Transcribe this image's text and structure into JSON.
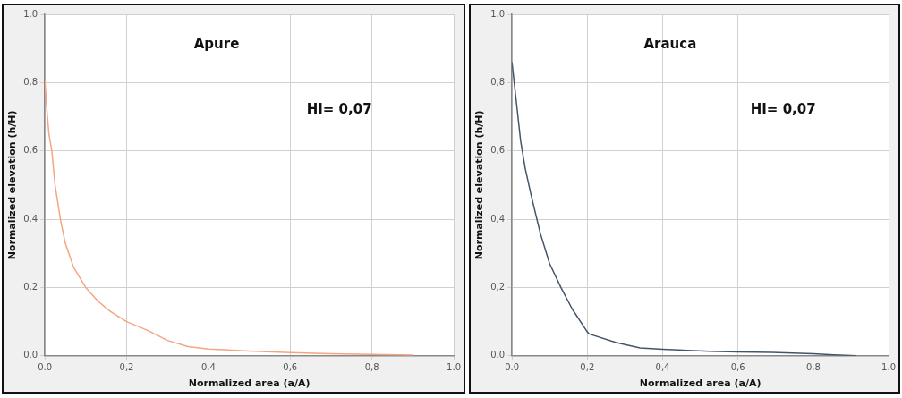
{
  "chart_data": [
    {
      "type": "line",
      "title": "Apure",
      "xlabel": "Normalized area (a/A)",
      "ylabel": "Normalized elevation (h/H)",
      "annotations": [
        "HI= 0,07"
      ],
      "x": [
        0,
        0.005,
        0.01,
        0.017,
        0.025,
        0.038,
        0.05,
        0.07,
        0.1,
        0.13,
        0.16,
        0.2,
        0.25,
        0.3,
        0.35,
        0.4,
        0.5,
        0.6,
        0.7,
        0.8,
        0.9
      ],
      "values": [
        0.81,
        0.72,
        0.65,
        0.6,
        0.5,
        0.4,
        0.33,
        0.26,
        0.2,
        0.16,
        0.13,
        0.1,
        0.075,
        0.045,
        0.027,
        0.02,
        0.014,
        0.009,
        0.006,
        0.004,
        0.002
      ],
      "color": "#f4a582",
      "xlim": [
        0,
        1
      ],
      "ylim": [
        0,
        1
      ],
      "xticks": [
        {
          "value": 0,
          "label": "0.0"
        },
        {
          "value": 0.2,
          "label": "0,2"
        },
        {
          "value": 0.4,
          "label": "0,4"
        },
        {
          "value": 0.6,
          "label": "0,6"
        },
        {
          "value": 0.8,
          "label": "0,8"
        },
        {
          "value": 1,
          "label": "1.0"
        }
      ],
      "yticks": [
        {
          "value": 0,
          "label": "0.0"
        },
        {
          "value": 0.2,
          "label": "0,2"
        },
        {
          "value": 0.4,
          "label": "0,4"
        },
        {
          "value": 0.6,
          "label": "0,6"
        },
        {
          "value": 0.8,
          "label": "0,8"
        },
        {
          "value": 1,
          "label": "1.0"
        }
      ],
      "grid": true
    },
    {
      "type": "line",
      "title": "Arauca",
      "xlabel": "Normalized area (a/A)",
      "ylabel": "Normalized elevation (h/H)",
      "annotations": [
        "HI= 0,07"
      ],
      "x": [
        0,
        0.023,
        0.035,
        0.051,
        0.075,
        0.1,
        0.13,
        0.16,
        0.2,
        0.205,
        0.277,
        0.34,
        0.4,
        0.525,
        0.6,
        0.69,
        0.8,
        0.855,
        0.915
      ],
      "values": [
        0.86,
        0.63,
        0.55,
        0.47,
        0.36,
        0.27,
        0.2,
        0.137,
        0.07,
        0.064,
        0.039,
        0.023,
        0.019,
        0.013,
        0.011,
        0.01,
        0.006,
        0.003,
        0
      ],
      "color": "#44546a",
      "xlim": [
        0,
        1
      ],
      "ylim": [
        0,
        1
      ],
      "xticks": [
        {
          "value": 0,
          "label": "0.0"
        },
        {
          "value": 0.2,
          "label": "0,2"
        },
        {
          "value": 0.4,
          "label": "0,4"
        },
        {
          "value": 0.6,
          "label": "0,6"
        },
        {
          "value": 0.8,
          "label": "0,8"
        },
        {
          "value": 1,
          "label": "1.0"
        }
      ],
      "yticks": [
        {
          "value": 0,
          "label": "0.0"
        },
        {
          "value": 0.2,
          "label": "0,2"
        },
        {
          "value": 0.4,
          "label": "0,4"
        },
        {
          "value": 0.6,
          "label": "0,6"
        },
        {
          "value": 0.8,
          "label": "0,8"
        },
        {
          "value": 1,
          "label": "1.0"
        }
      ],
      "grid": true
    }
  ]
}
